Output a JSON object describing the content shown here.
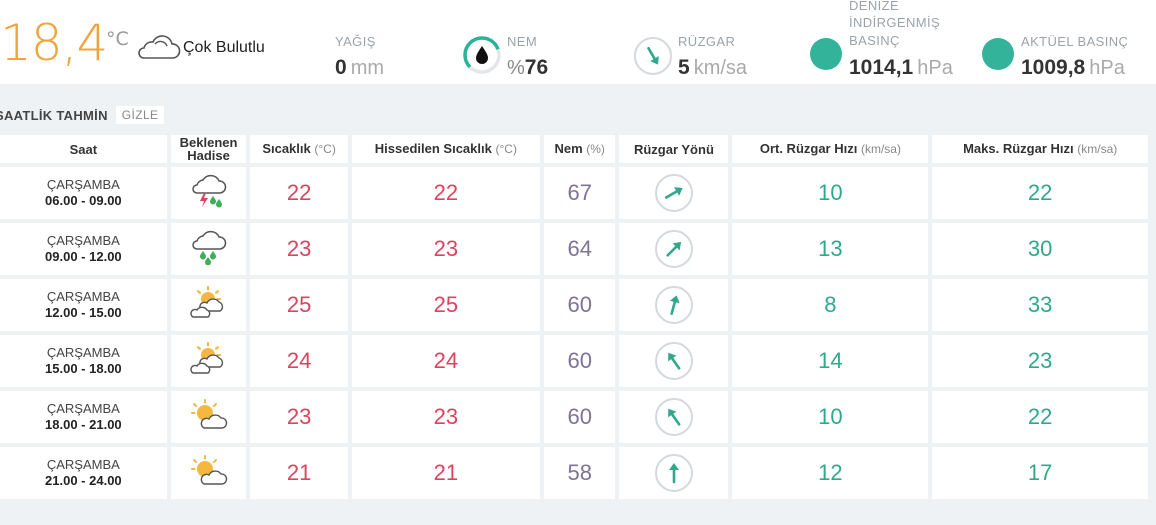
{
  "current": {
    "temperature": "18,4",
    "temperature_unit": "°C",
    "condition": "Çok Bulutlu",
    "condition_icon": "cloud-icon",
    "yagis": {
      "label": "YAĞIŞ",
      "value": "0",
      "unit": "mm"
    },
    "nem": {
      "label": "NEM",
      "prefix": "%",
      "value": "76",
      "fraction": 0.76
    },
    "ruzgar": {
      "label": "RÜZGAR",
      "value": "5",
      "unit": "km/sa",
      "direction_deg": 150
    },
    "deniz_basinc": {
      "label_lines": [
        "DENİZE",
        "İNDİRGENMİŞ",
        "BASINÇ"
      ],
      "value": "1014,1",
      "unit": "hPa"
    },
    "aktuel_basinc": {
      "label": "AKTÜEL BASINÇ",
      "value": "1009,8",
      "unit": "hPa"
    },
    "accent_color": "#33b49a",
    "temp_color": "#f0a43a"
  },
  "hourly": {
    "title": "SAATLİK TAHMİN",
    "toggle": "GİZLE",
    "headers": {
      "saat": "Saat",
      "hadise_line1": "Beklenen",
      "hadise_line2": "Hadise",
      "sicaklik": "Sıcaklık",
      "sicaklik_unit": "(°C)",
      "hissedilen": "Hissedilen Sıcaklık",
      "hissedilen_unit": "(°C)",
      "nem": "Nem",
      "nem_unit": "(%)",
      "ruzgar_yonu": "Rüzgar Yönü",
      "ort_ruzgar": "Ort. Rüzgar Hızı",
      "ort_ruzgar_unit": "(km/sa)",
      "maks_ruzgar": "Maks. Rüzgar Hızı",
      "maks_ruzgar_unit": "(km/sa)"
    },
    "rows": [
      {
        "day": "ÇARŞAMBA",
        "hours": "06.00 - 09.00",
        "icon": "thunderstorm-rain-icon",
        "sicaklik": "22",
        "hissedilen": "22",
        "nem": "67",
        "wind_deg": 60,
        "ort": "10",
        "maks": "22"
      },
      {
        "day": "ÇARŞAMBA",
        "hours": "09.00 - 12.00",
        "icon": "rain-cloud-icon",
        "sicaklik": "23",
        "hissedilen": "23",
        "nem": "64",
        "wind_deg": 45,
        "ort": "13",
        "maks": "30"
      },
      {
        "day": "ÇARŞAMBA",
        "hours": "12.00 - 15.00",
        "icon": "partly-cloudy-icon",
        "sicaklik": "25",
        "hissedilen": "25",
        "nem": "60",
        "wind_deg": 15,
        "ort": "8",
        "maks": "33"
      },
      {
        "day": "ÇARŞAMBA",
        "hours": "15.00 - 18.00",
        "icon": "partly-cloudy-icon",
        "sicaklik": "24",
        "hissedilen": "24",
        "nem": "60",
        "wind_deg": -35,
        "ort": "14",
        "maks": "23"
      },
      {
        "day": "ÇARŞAMBA",
        "hours": "18.00 - 21.00",
        "icon": "sun-cloud-icon",
        "sicaklik": "23",
        "hissedilen": "23",
        "nem": "60",
        "wind_deg": -35,
        "ort": "10",
        "maks": "22"
      },
      {
        "day": "ÇARŞAMBA",
        "hours": "21.00 - 24.00",
        "icon": "sun-cloud-icon",
        "sicaklik": "21",
        "hissedilen": "21",
        "nem": "58",
        "wind_deg": 0,
        "ort": "12",
        "maks": "17"
      }
    ]
  }
}
